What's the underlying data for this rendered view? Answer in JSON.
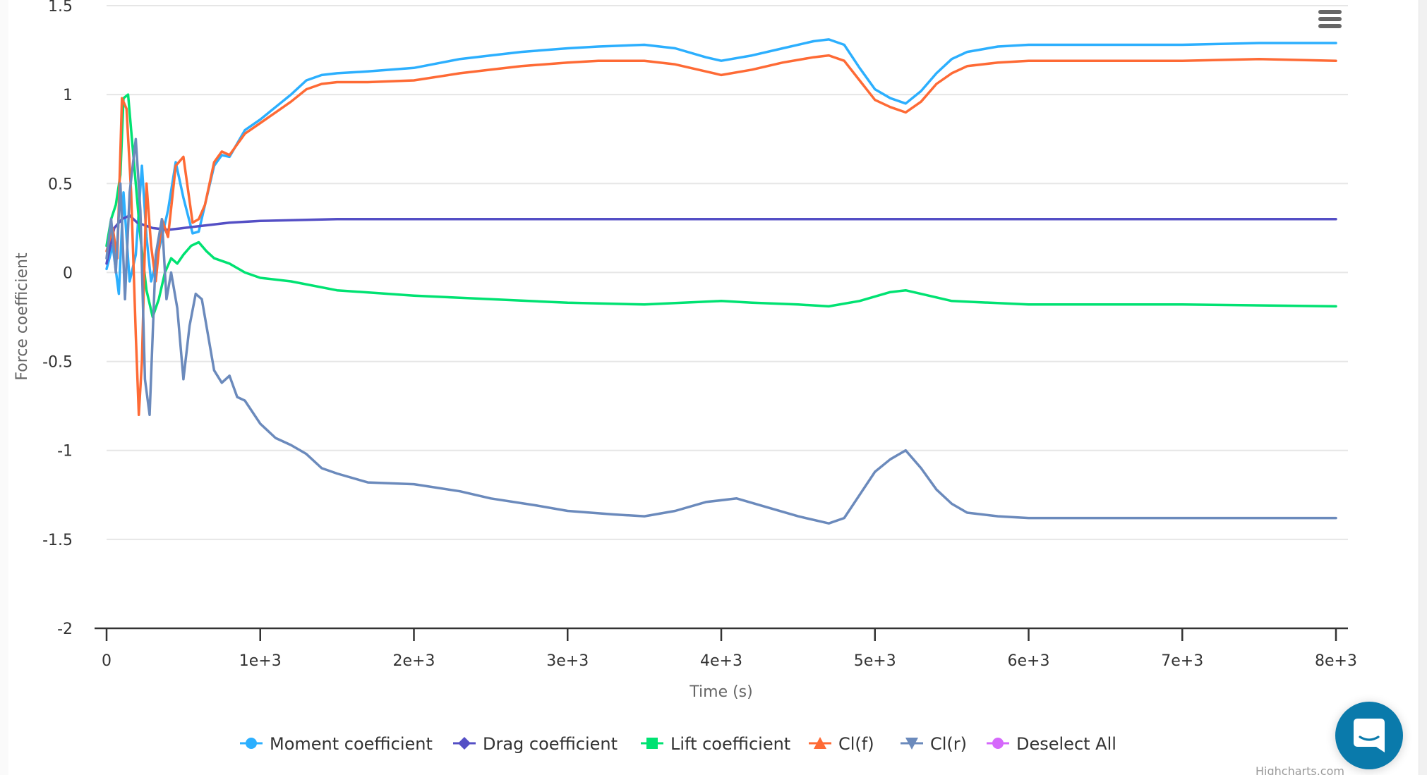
{
  "chart_data": {
    "type": "line",
    "title": "",
    "xlabel": "Time (s)",
    "ylabel": "Force coefficient",
    "xlim": [
      0,
      8000
    ],
    "ylim": [
      -2,
      1.5
    ],
    "grid": true,
    "legend_position": "bottom-center",
    "x_ticks": [
      0,
      1000,
      2000,
      3000,
      4000,
      5000,
      6000,
      7000,
      8000
    ],
    "x_tick_labels": [
      "0",
      "1e+3",
      "2e+3",
      "3e+3",
      "4e+3",
      "5e+3",
      "6e+3",
      "7e+3",
      "8e+3"
    ],
    "y_ticks": [
      -2,
      -1.5,
      -1,
      -0.5,
      0,
      0.5,
      1,
      1.5
    ],
    "y_tick_labels": [
      "-2",
      "-1.5",
      "-1",
      "-0.5",
      "0",
      "0.5",
      "1",
      "1.5"
    ],
    "series": [
      {
        "name": "Moment coefficient",
        "color": "#2caffe",
        "marker": "circle",
        "x": [
          0,
          40,
          80,
          110,
          150,
          190,
          230,
          260,
          290,
          320,
          360,
          400,
          450,
          500,
          560,
          600,
          640,
          700,
          750,
          800,
          900,
          1000,
          1100,
          1200,
          1300,
          1400,
          1500,
          1700,
          2000,
          2300,
          2500,
          2700,
          3000,
          3200,
          3500,
          3700,
          3900,
          4000,
          4200,
          4400,
          4600,
          4700,
          4800,
          4900,
          5000,
          5100,
          5200,
          5300,
          5400,
          5500,
          5600,
          5800,
          6000,
          6500,
          7000,
          7500,
          8000
        ],
        "y": [
          0.02,
          0.15,
          -0.12,
          0.45,
          -0.05,
          0.1,
          0.6,
          0.2,
          -0.05,
          0.05,
          0.2,
          0.35,
          0.62,
          0.42,
          0.22,
          0.23,
          0.38,
          0.6,
          0.66,
          0.65,
          0.8,
          0.86,
          0.93,
          1.0,
          1.08,
          1.11,
          1.12,
          1.13,
          1.15,
          1.2,
          1.22,
          1.24,
          1.26,
          1.27,
          1.28,
          1.26,
          1.21,
          1.19,
          1.22,
          1.26,
          1.3,
          1.31,
          1.28,
          1.15,
          1.03,
          0.98,
          0.95,
          1.02,
          1.12,
          1.2,
          1.24,
          1.27,
          1.28,
          1.28,
          1.28,
          1.29,
          1.29
        ]
      },
      {
        "name": "Drag coefficient",
        "color": "#544fc5",
        "marker": "diamond",
        "x": [
          0,
          50,
          100,
          150,
          200,
          300,
          400,
          500,
          600,
          800,
          1000,
          1500,
          2000,
          3000,
          4000,
          5000,
          5200,
          6000,
          7000,
          8000
        ],
        "y": [
          0.05,
          0.25,
          0.3,
          0.32,
          0.28,
          0.25,
          0.24,
          0.25,
          0.26,
          0.28,
          0.29,
          0.3,
          0.3,
          0.3,
          0.3,
          0.3,
          0.3,
          0.3,
          0.3,
          0.3
        ]
      },
      {
        "name": "Lift coefficient",
        "color": "#00e272",
        "marker": "square",
        "x": [
          0,
          30,
          60,
          90,
          110,
          140,
          180,
          220,
          260,
          300,
          340,
          380,
          420,
          460,
          500,
          550,
          600,
          650,
          700,
          800,
          900,
          1000,
          1200,
          1500,
          2000,
          2500,
          3000,
          3500,
          4000,
          4200,
          4500,
          4700,
          4900,
          5100,
          5200,
          5300,
          5500,
          6000,
          7000,
          8000
        ],
        "y": [
          0.15,
          0.3,
          0.38,
          0.55,
          0.98,
          1.0,
          0.6,
          0.2,
          -0.1,
          -0.25,
          -0.15,
          0.0,
          0.08,
          0.05,
          0.1,
          0.15,
          0.17,
          0.12,
          0.08,
          0.05,
          0.0,
          -0.03,
          -0.05,
          -0.1,
          -0.13,
          -0.15,
          -0.17,
          -0.18,
          -0.16,
          -0.17,
          -0.18,
          -0.19,
          -0.16,
          -0.11,
          -0.1,
          -0.12,
          -0.16,
          -0.18,
          -0.18,
          -0.19
        ]
      },
      {
        "name": "Cl(f)",
        "color": "#fe6a35",
        "marker": "triangle",
        "x": [
          0,
          40,
          70,
          100,
          130,
          160,
          190,
          210,
          230,
          260,
          290,
          320,
          360,
          400,
          450,
          500,
          560,
          600,
          640,
          700,
          750,
          800,
          900,
          1000,
          1100,
          1200,
          1300,
          1400,
          1500,
          1700,
          2000,
          2300,
          2500,
          2700,
          3000,
          3200,
          3500,
          3700,
          3900,
          4000,
          4200,
          4400,
          4600,
          4700,
          4800,
          4900,
          5000,
          5100,
          5200,
          5300,
          5400,
          5500,
          5600,
          5800,
          6000,
          6500,
          7000,
          7500,
          8000
        ],
        "y": [
          0.12,
          0.25,
          0.08,
          0.98,
          0.92,
          0.45,
          -0.35,
          -0.8,
          -0.5,
          0.5,
          0.15,
          -0.05,
          0.3,
          0.2,
          0.6,
          0.65,
          0.28,
          0.3,
          0.38,
          0.62,
          0.68,
          0.66,
          0.78,
          0.84,
          0.9,
          0.96,
          1.03,
          1.06,
          1.07,
          1.07,
          1.08,
          1.12,
          1.14,
          1.16,
          1.18,
          1.19,
          1.19,
          1.17,
          1.13,
          1.11,
          1.14,
          1.18,
          1.21,
          1.22,
          1.19,
          1.08,
          0.97,
          0.93,
          0.9,
          0.96,
          1.06,
          1.12,
          1.16,
          1.18,
          1.19,
          1.19,
          1.19,
          1.2,
          1.19
        ]
      },
      {
        "name": "Cl(r)",
        "color": "#6b8abc",
        "marker": "triangle-down",
        "x": [
          0,
          30,
          60,
          90,
          120,
          150,
          190,
          220,
          250,
          280,
          320,
          360,
          390,
          420,
          460,
          500,
          540,
          580,
          620,
          660,
          700,
          750,
          800,
          850,
          900,
          1000,
          1100,
          1200,
          1300,
          1400,
          1500,
          1700,
          2000,
          2300,
          2500,
          2800,
          3000,
          3300,
          3500,
          3700,
          3900,
          4100,
          4300,
          4500,
          4700,
          4800,
          4900,
          5000,
          5100,
          5200,
          5300,
          5400,
          5500,
          5600,
          5800,
          6000,
          6500,
          7000,
          7500,
          8000
        ],
        "y": [
          0.08,
          0.3,
          0.0,
          0.5,
          -0.15,
          0.45,
          0.75,
          0.35,
          -0.6,
          -0.8,
          0.1,
          0.3,
          -0.15,
          0.0,
          -0.2,
          -0.6,
          -0.3,
          -0.12,
          -0.15,
          -0.35,
          -0.55,
          -0.62,
          -0.58,
          -0.7,
          -0.72,
          -0.85,
          -0.93,
          -0.97,
          -1.02,
          -1.1,
          -1.13,
          -1.18,
          -1.19,
          -1.23,
          -1.27,
          -1.31,
          -1.34,
          -1.36,
          -1.37,
          -1.34,
          -1.29,
          -1.27,
          -1.32,
          -1.37,
          -1.41,
          -1.38,
          -1.25,
          -1.12,
          -1.05,
          -1.0,
          -1.1,
          -1.22,
          -1.3,
          -1.35,
          -1.37,
          -1.38,
          -1.38,
          -1.38,
          -1.38,
          -1.38
        ]
      }
    ],
    "legend": [
      {
        "label": "Moment coefficient",
        "color": "#2caffe",
        "marker": "circle"
      },
      {
        "label": "Drag coefficient",
        "color": "#544fc5",
        "marker": "diamond"
      },
      {
        "label": "Lift coefficient",
        "color": "#00e272",
        "marker": "square"
      },
      {
        "label": "Cl(f)",
        "color": "#fe6a35",
        "marker": "triangle"
      },
      {
        "label": "Cl(r)",
        "color": "#6b8abc",
        "marker": "triangle-down"
      },
      {
        "label": "Deselect All",
        "color": "#d568fb",
        "marker": "circle"
      }
    ]
  },
  "credits": "Highcharts.com",
  "icons": {
    "menu": "hamburger-menu-icon",
    "chat": "chat-bubble-icon"
  }
}
